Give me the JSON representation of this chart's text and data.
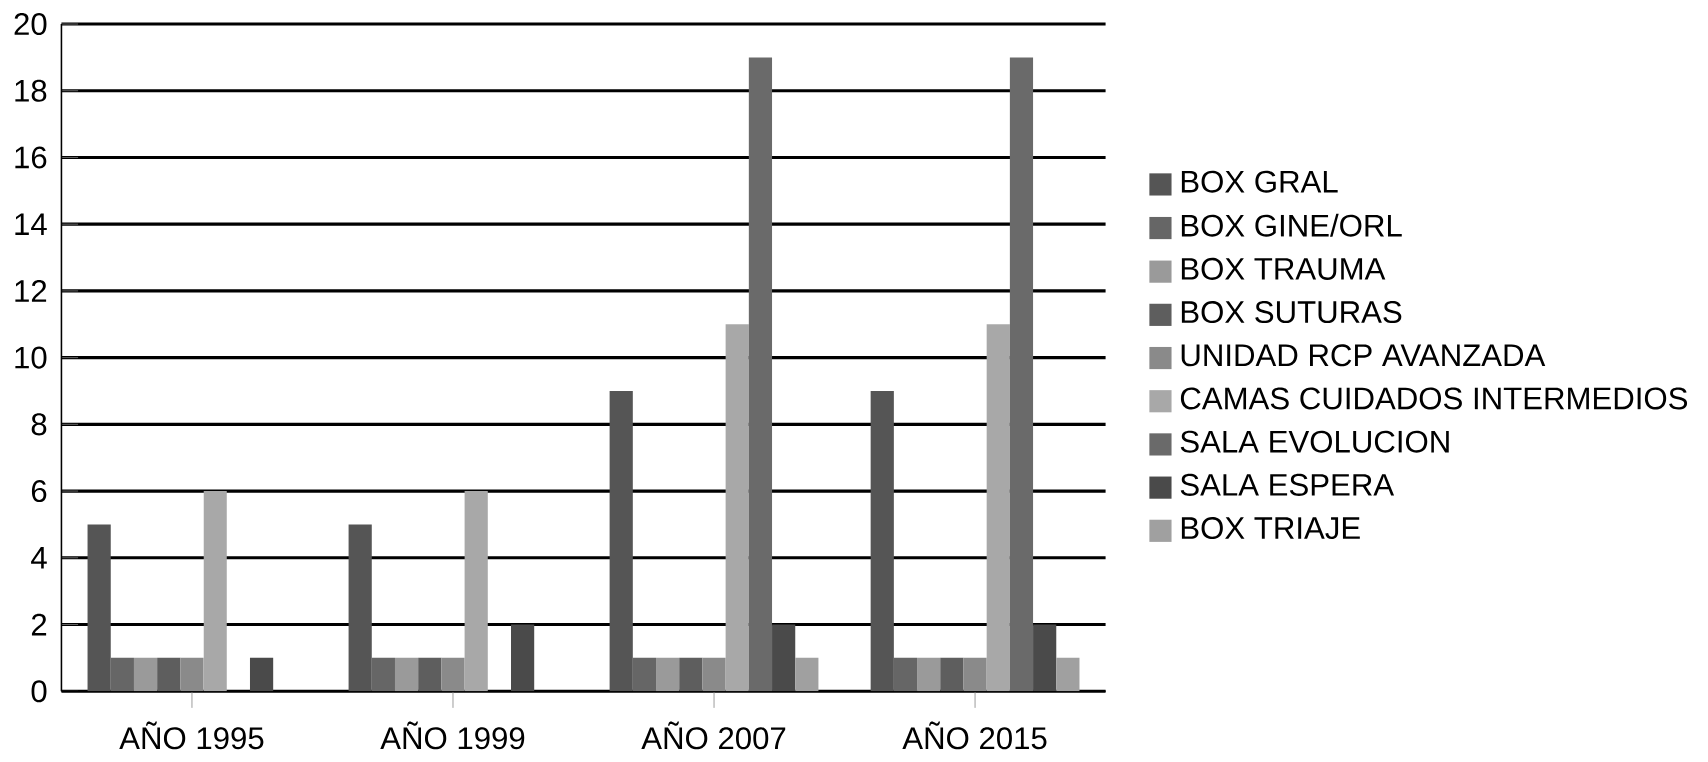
{
  "chart_data": {
    "type": "bar",
    "categories": [
      "AÑO 1995",
      "AÑO 1999",
      "AÑO 2007",
      "AÑO 2015"
    ],
    "series": [
      {
        "name": "BOX GRAL",
        "color": "#555555",
        "values": [
          5,
          5,
          9,
          9
        ]
      },
      {
        "name": "BOX GINE/ORL",
        "color": "#666666",
        "values": [
          1,
          1,
          1,
          1
        ]
      },
      {
        "name": "BOX TRAUMA",
        "color": "#9a9a9a",
        "values": [
          1,
          1,
          1,
          1
        ]
      },
      {
        "name": "BOX SUTURAS",
        "color": "#5e5e5e",
        "values": [
          1,
          1,
          1,
          1
        ]
      },
      {
        "name": "UNIDAD RCP AVANZADA",
        "color": "#8a8a8a",
        "values": [
          1,
          1,
          1,
          1
        ]
      },
      {
        "name": "CAMAS CUIDADOS INTERMEDIOS",
        "color": "#a8a8a8",
        "values": [
          6,
          6,
          11,
          11
        ]
      },
      {
        "name": "SALA EVOLUCION",
        "color": "#6a6a6a",
        "values": [
          0,
          0,
          19,
          19
        ]
      },
      {
        "name": "SALA ESPERA",
        "color": "#4a4a4a",
        "values": [
          1,
          2,
          2,
          2
        ]
      },
      {
        "name": "BOX TRIAJE",
        "color": "#a0a0a0",
        "values": [
          0,
          0,
          1,
          1
        ]
      }
    ],
    "ylim": [
      0,
      20
    ],
    "yticks": [
      0,
      2,
      4,
      6,
      8,
      10,
      12,
      14,
      16,
      18,
      20
    ],
    "grid": "y",
    "legend": "right"
  }
}
